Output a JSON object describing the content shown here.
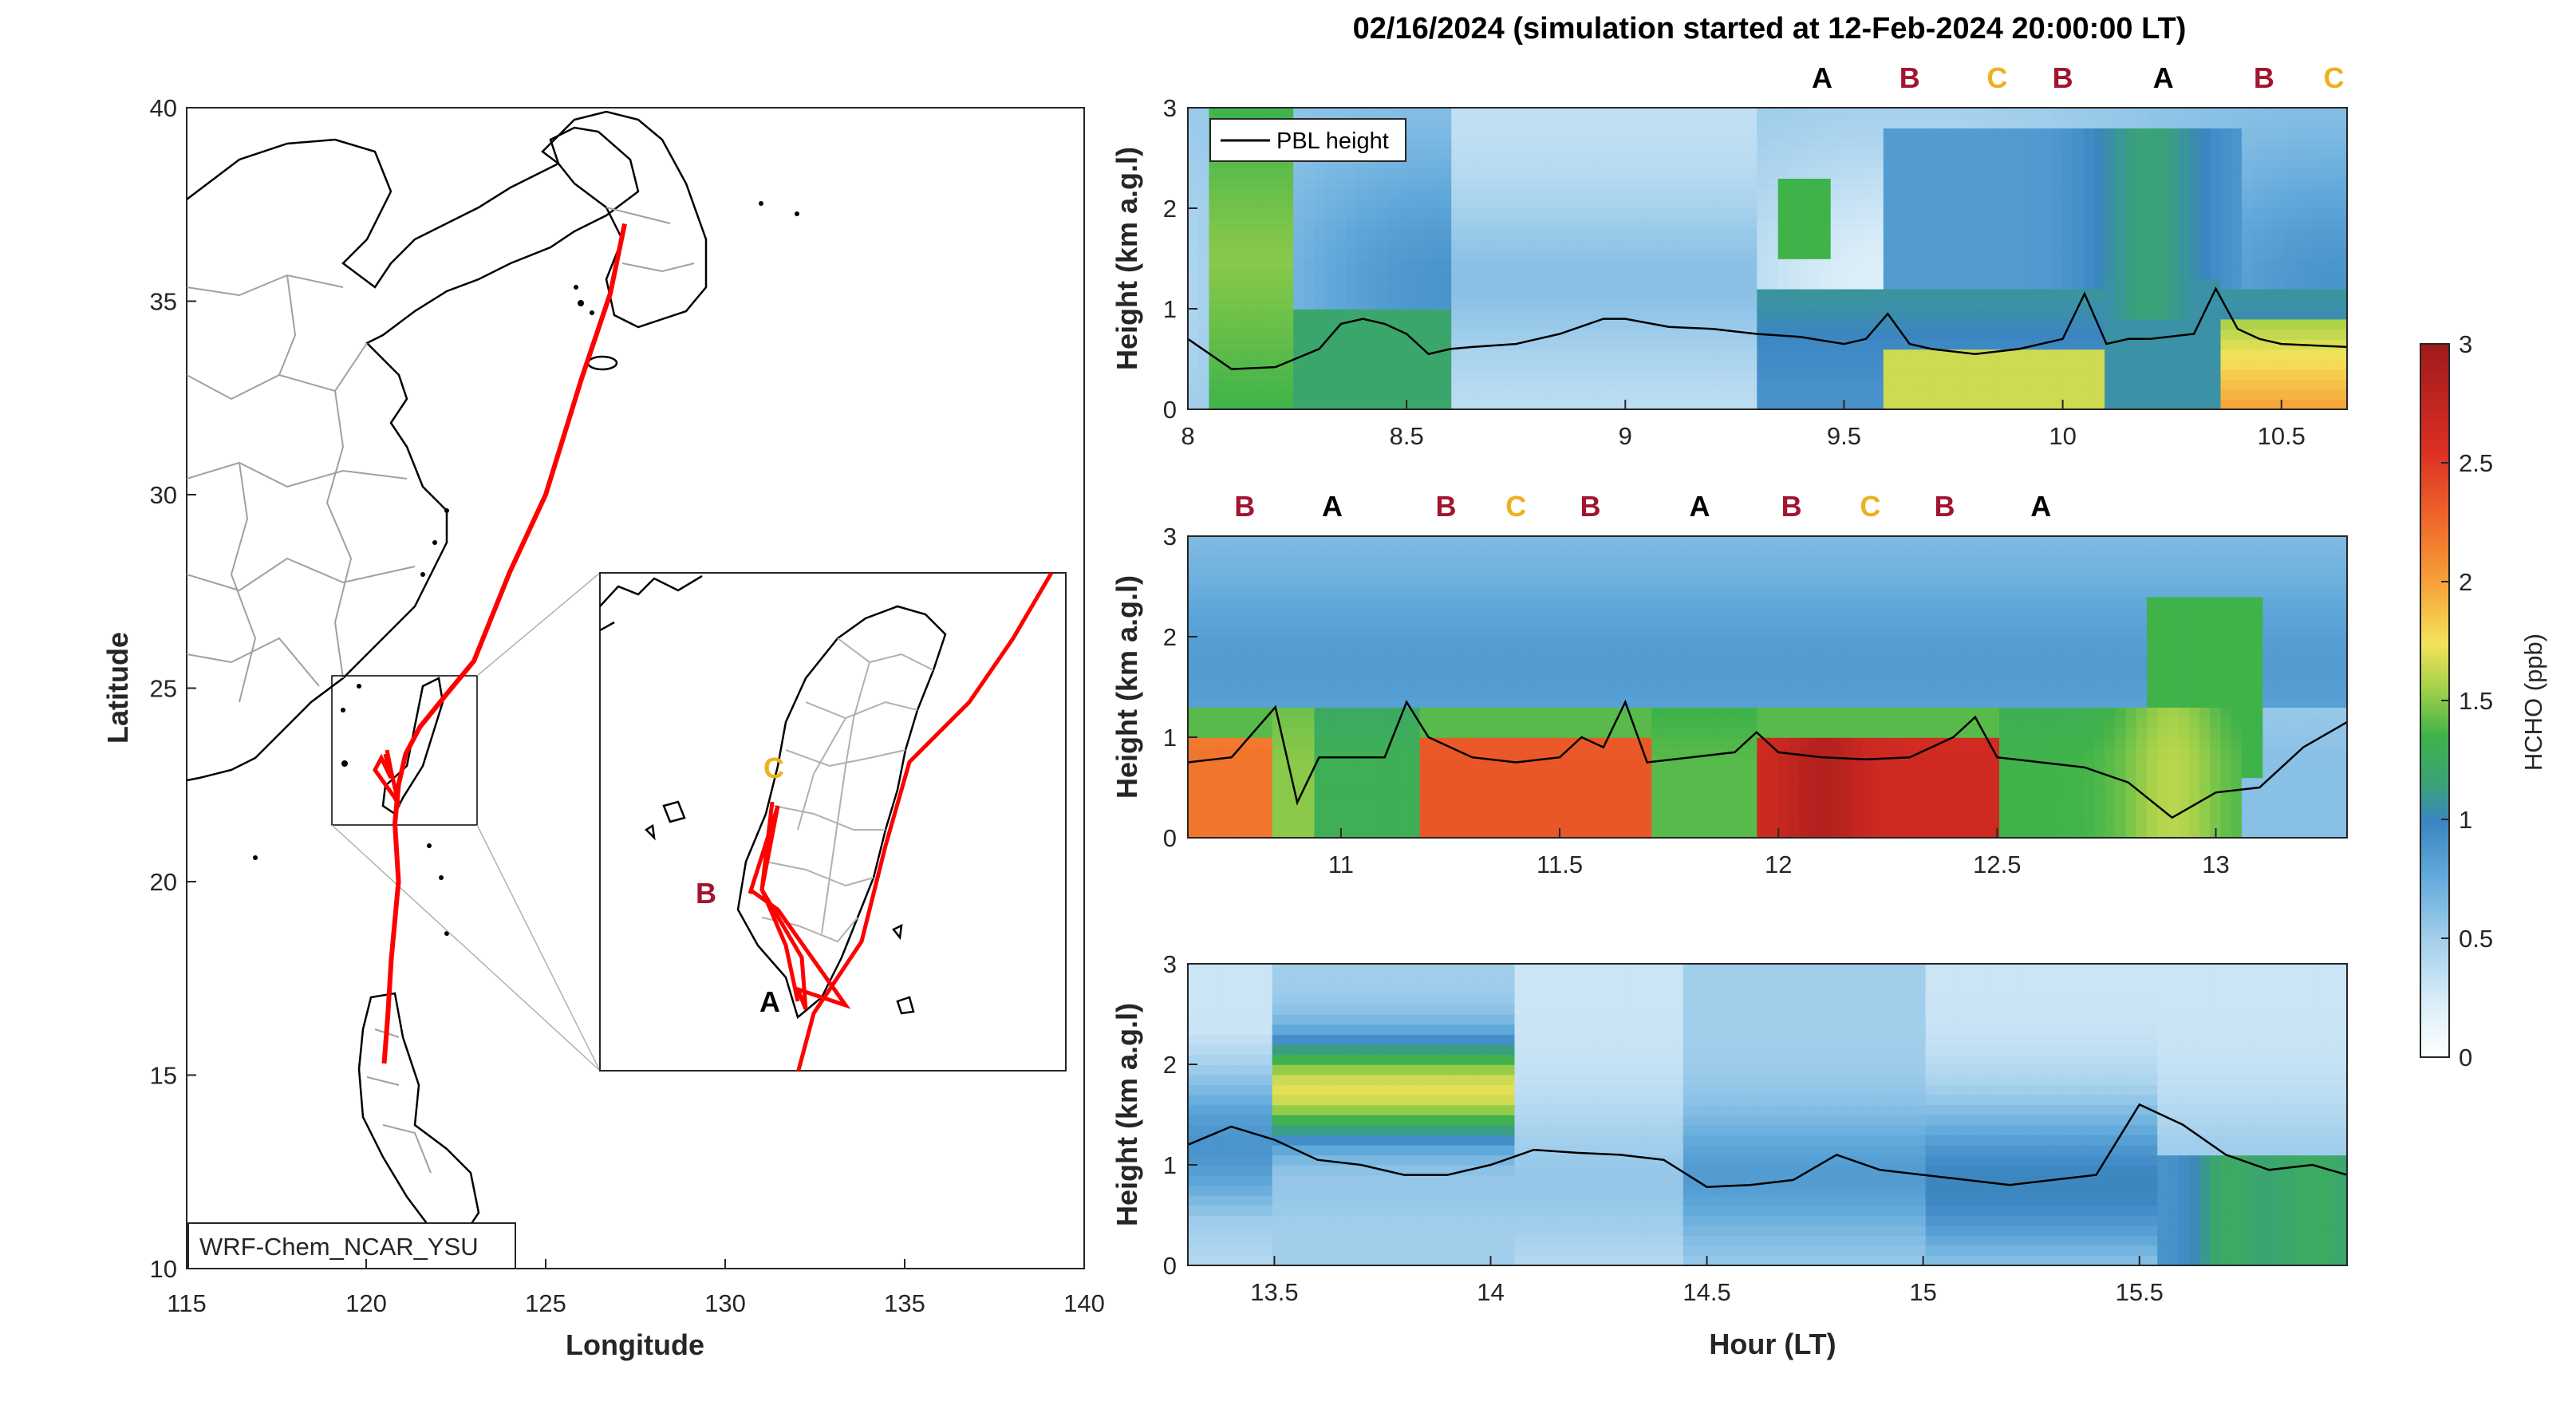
{
  "title": "02/16/2024 (simulation started at 12-Feb-2024 20:00:00 LT)",
  "colors": {
    "track": "#ff0000",
    "A": "#000000",
    "B": "#a2142f",
    "C": "#edb120",
    "pbl": "#000000",
    "map_coast": "#000000",
    "map_border": "#a0a0a0"
  },
  "chart_data": [
    {
      "type": "map",
      "xlabel": "Longitude",
      "ylabel": "Latitude",
      "xlim": [
        115,
        140
      ],
      "ylim": [
        10,
        40
      ],
      "xticks": [
        115,
        120,
        125,
        130,
        135,
        140
      ],
      "yticks": [
        10,
        15,
        20,
        25,
        30,
        35,
        40
      ],
      "model_label": "WRF-Chem_NCAR_YSU",
      "flight_track": {
        "lon": [
          127.2,
          126.8,
          126.0,
          125.0,
          124.0,
          123.0,
          122.2,
          121.5,
          121.1,
          120.9,
          120.8,
          120.9,
          120.7,
          120.6,
          120.5
        ],
        "lat": [
          37.0,
          35.2,
          33.0,
          30.0,
          28.0,
          25.7,
          24.8,
          24.0,
          23.3,
          22.5,
          21.5,
          20.0,
          18.0,
          16.5,
          15.3
        ]
      },
      "inset": {
        "region_lon": [
          119,
          123
        ],
        "region_lat": [
          21.5,
          25.5
        ],
        "sites": [
          {
            "name": "A",
            "lon": 120.9,
            "lat": 22.2
          },
          {
            "name": "B",
            "lon": 120.1,
            "lat": 23.0
          },
          {
            "name": "C",
            "lon": 120.5,
            "lat": 23.9
          }
        ]
      }
    },
    {
      "type": "heatmap",
      "panel": 1,
      "xlim": [
        8,
        10.65
      ],
      "ylim": [
        0,
        3
      ],
      "xticks": [
        8,
        8.5,
        9,
        9.5,
        10,
        10.5
      ],
      "yticks": [
        0,
        1,
        2,
        3
      ],
      "ylabel": "Height (km a.g.l)",
      "legend": "PBL height",
      "site_markers": [
        {
          "label": "A",
          "x": 9.45
        },
        {
          "label": "B",
          "x": 9.65
        },
        {
          "label": "C",
          "x": 9.85
        },
        {
          "label": "B",
          "x": 10.0
        },
        {
          "label": "A",
          "x": 10.23
        },
        {
          "label": "B",
          "x": 10.46
        },
        {
          "label": "C",
          "x": 10.62
        }
      ],
      "pbl": {
        "x": [
          8.0,
          8.05,
          8.1,
          8.2,
          8.3,
          8.35,
          8.4,
          8.45,
          8.5,
          8.55,
          8.6,
          8.65,
          8.75,
          8.85,
          8.95,
          9.0,
          9.1,
          9.2,
          9.3,
          9.4,
          9.5,
          9.55,
          9.6,
          9.65,
          9.7,
          9.8,
          9.9,
          10.0,
          10.05,
          10.1,
          10.15,
          10.2,
          10.3,
          10.35,
          10.4,
          10.45,
          10.5,
          10.65
        ],
        "y": [
          0.7,
          0.55,
          0.4,
          0.42,
          0.6,
          0.85,
          0.9,
          0.85,
          0.75,
          0.55,
          0.6,
          0.62,
          0.65,
          0.75,
          0.9,
          0.9,
          0.82,
          0.8,
          0.75,
          0.72,
          0.65,
          0.7,
          0.95,
          0.65,
          0.6,
          0.55,
          0.6,
          0.7,
          1.15,
          0.65,
          0.7,
          0.7,
          0.75,
          1.2,
          0.8,
          0.7,
          0.65,
          0.62
        ]
      }
    },
    {
      "type": "heatmap",
      "panel": 2,
      "xlim": [
        10.65,
        13.3
      ],
      "ylim": [
        0,
        3
      ],
      "xticks": [
        11,
        11.5,
        12,
        12.5,
        13
      ],
      "yticks": [
        0,
        1,
        2,
        3
      ],
      "ylabel": "Height (km a.g.l)",
      "site_markers": [
        {
          "label": "B",
          "x": 10.78
        },
        {
          "label": "A",
          "x": 10.98
        },
        {
          "label": "B",
          "x": 11.24
        },
        {
          "label": "C",
          "x": 11.4
        },
        {
          "label": "B",
          "x": 11.57
        },
        {
          "label": "A",
          "x": 11.82
        },
        {
          "label": "B",
          "x": 12.03
        },
        {
          "label": "C",
          "x": 12.21
        },
        {
          "label": "B",
          "x": 12.38
        },
        {
          "label": "A",
          "x": 12.6
        }
      ],
      "pbl": {
        "x": [
          10.65,
          10.75,
          10.85,
          10.9,
          10.95,
          11.0,
          11.1,
          11.15,
          11.2,
          11.3,
          11.4,
          11.5,
          11.55,
          11.6,
          11.65,
          11.7,
          11.8,
          11.9,
          11.95,
          12.0,
          12.1,
          12.2,
          12.3,
          12.4,
          12.45,
          12.5,
          12.6,
          12.7,
          12.8,
          12.9,
          13.0,
          13.1,
          13.2,
          13.3
        ],
        "y": [
          0.75,
          0.8,
          1.3,
          0.35,
          0.8,
          0.8,
          0.8,
          1.35,
          1.0,
          0.8,
          0.75,
          0.8,
          1.0,
          0.9,
          1.35,
          0.75,
          0.8,
          0.85,
          1.05,
          0.85,
          0.8,
          0.78,
          0.8,
          1.0,
          1.2,
          0.8,
          0.75,
          0.7,
          0.55,
          0.2,
          0.45,
          0.5,
          0.9,
          1.15
        ]
      }
    },
    {
      "type": "heatmap",
      "panel": 3,
      "xlim": [
        13.3,
        15.98
      ],
      "ylim": [
        0,
        3
      ],
      "xticks": [
        13.5,
        14,
        14.5,
        15,
        15.5
      ],
      "yticks": [
        0,
        1,
        2,
        3
      ],
      "ylabel": "Height (km a.g.l)",
      "xlabel": "Hour (LT)",
      "pbl": {
        "x": [
          13.3,
          13.4,
          13.5,
          13.6,
          13.7,
          13.8,
          13.9,
          14.0,
          14.1,
          14.2,
          14.3,
          14.4,
          14.5,
          14.6,
          14.7,
          14.8,
          14.9,
          15.0,
          15.1,
          15.2,
          15.3,
          15.4,
          15.5,
          15.6,
          15.7,
          15.8,
          15.9,
          15.98
        ],
        "y": [
          1.2,
          1.38,
          1.25,
          1.05,
          1.0,
          0.9,
          0.9,
          1.0,
          1.15,
          1.12,
          1.1,
          1.05,
          0.78,
          0.8,
          0.85,
          1.1,
          0.95,
          0.9,
          0.85,
          0.8,
          0.85,
          0.9,
          1.6,
          1.4,
          1.1,
          0.95,
          1.0,
          0.9
        ]
      }
    },
    {
      "type": "colorbar",
      "label": "HCHO (ppb)",
      "lim": [
        0,
        3
      ],
      "ticks": [
        0,
        0.5,
        1,
        1.5,
        2,
        2.5,
        3
      ]
    }
  ]
}
